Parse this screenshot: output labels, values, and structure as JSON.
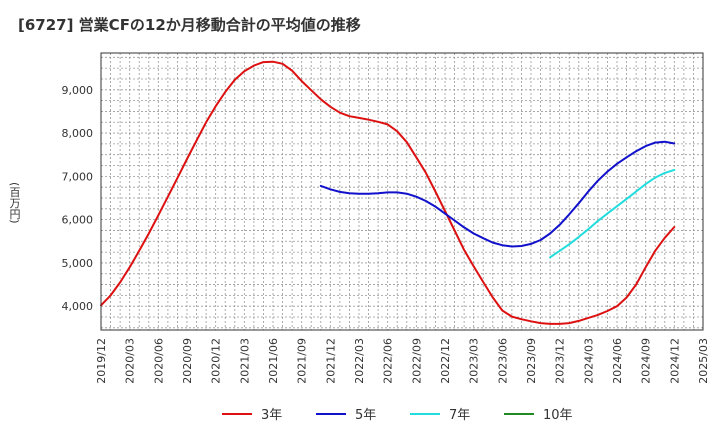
{
  "chart_data": {
    "type": "line",
    "title": "[6727]  営業CFの12か月移動合計の平均値の推移",
    "ylabel": "(百万円)",
    "xlabel": "",
    "x_ticks": [
      "2019/12",
      "2020/03",
      "2020/06",
      "2020/09",
      "2020/12",
      "2021/03",
      "2021/06",
      "2021/09",
      "2021/12",
      "2022/03",
      "2022/06",
      "2022/09",
      "2022/12",
      "2023/03",
      "2023/06",
      "2023/09",
      "2023/12",
      "2024/03",
      "2024/06",
      "2024/09",
      "2024/12",
      "2025/03"
    ],
    "y_ticks": [
      4000,
      5000,
      6000,
      7000,
      8000,
      9000
    ],
    "y_tick_labels": [
      "4,000",
      "5,000",
      "6,000",
      "7,000",
      "8,000",
      "9,000"
    ],
    "ylim": [
      3450,
      9850
    ],
    "grid": true,
    "legend_position": "bottom",
    "series": [
      {
        "name": "3年",
        "color": "#dd1111",
        "x": [
          "2019/12",
          "2020/01",
          "2020/02",
          "2020/03",
          "2020/04",
          "2020/05",
          "2020/06",
          "2020/07",
          "2020/08",
          "2020/09",
          "2020/10",
          "2020/11",
          "2020/12",
          "2021/01",
          "2021/02",
          "2021/03",
          "2021/04",
          "2021/05",
          "2021/06",
          "2021/07",
          "2021/08",
          "2021/09",
          "2021/10",
          "2021/11",
          "2021/12",
          "2022/01",
          "2022/02",
          "2022/03",
          "2022/04",
          "2022/05",
          "2022/06",
          "2022/07",
          "2022/08",
          "2022/09",
          "2022/10",
          "2022/11",
          "2022/12",
          "2023/01",
          "2023/02",
          "2023/03",
          "2023/04",
          "2023/05",
          "2023/06",
          "2023/07",
          "2023/08",
          "2023/09",
          "2023/10",
          "2023/11",
          "2023/12",
          "2024/01",
          "2024/02",
          "2024/03",
          "2024/04",
          "2024/05",
          "2024/06",
          "2024/07",
          "2024/08",
          "2024/09",
          "2024/10",
          "2024/11",
          "2024/12"
        ],
        "values": [
          4020,
          4250,
          4550,
          4900,
          5280,
          5680,
          6100,
          6530,
          6960,
          7400,
          7830,
          8250,
          8620,
          8950,
          9230,
          9430,
          9560,
          9640,
          9650,
          9600,
          9440,
          9200,
          8990,
          8780,
          8610,
          8470,
          8390,
          8350,
          8310,
          8260,
          8200,
          8040,
          7790,
          7440,
          7080,
          6650,
          6200,
          5750,
          5300,
          4920,
          4560,
          4200,
          3900,
          3760,
          3700,
          3650,
          3610,
          3590,
          3590,
          3610,
          3660,
          3730,
          3800,
          3890,
          4000,
          4200,
          4500,
          4900,
          5280,
          5580,
          5830
        ]
      },
      {
        "name": "5年",
        "color": "#1111cc",
        "x": [
          "2021/11",
          "2021/12",
          "2022/01",
          "2022/02",
          "2022/03",
          "2022/04",
          "2022/05",
          "2022/06",
          "2022/07",
          "2022/08",
          "2022/09",
          "2022/10",
          "2022/11",
          "2022/12",
          "2023/01",
          "2023/02",
          "2023/03",
          "2023/04",
          "2023/05",
          "2023/06",
          "2023/07",
          "2023/08",
          "2023/09",
          "2023/10",
          "2023/11",
          "2023/12",
          "2024/01",
          "2024/02",
          "2024/03",
          "2024/04",
          "2024/05",
          "2024/06",
          "2024/07",
          "2024/08",
          "2024/09",
          "2024/10",
          "2024/11",
          "2024/12"
        ],
        "values": [
          6780,
          6700,
          6640,
          6610,
          6600,
          6600,
          6610,
          6630,
          6630,
          6600,
          6530,
          6430,
          6300,
          6140,
          5980,
          5820,
          5680,
          5570,
          5470,
          5410,
          5380,
          5390,
          5440,
          5530,
          5680,
          5880,
          6120,
          6380,
          6650,
          6900,
          7110,
          7290,
          7440,
          7580,
          7700,
          7780,
          7800,
          7760
        ]
      },
      {
        "name": "7年",
        "color": "#22dddd",
        "x": [
          "2023/11",
          "2023/12",
          "2024/01",
          "2024/02",
          "2024/03",
          "2024/04",
          "2024/05",
          "2024/06",
          "2024/07",
          "2024/08",
          "2024/09",
          "2024/10",
          "2024/11",
          "2024/12"
        ],
        "values": [
          5130,
          5280,
          5430,
          5600,
          5780,
          5970,
          6140,
          6310,
          6480,
          6650,
          6820,
          6970,
          7080,
          7150
        ]
      },
      {
        "name": "10年",
        "color": "#228822",
        "x": [],
        "values": []
      }
    ]
  }
}
